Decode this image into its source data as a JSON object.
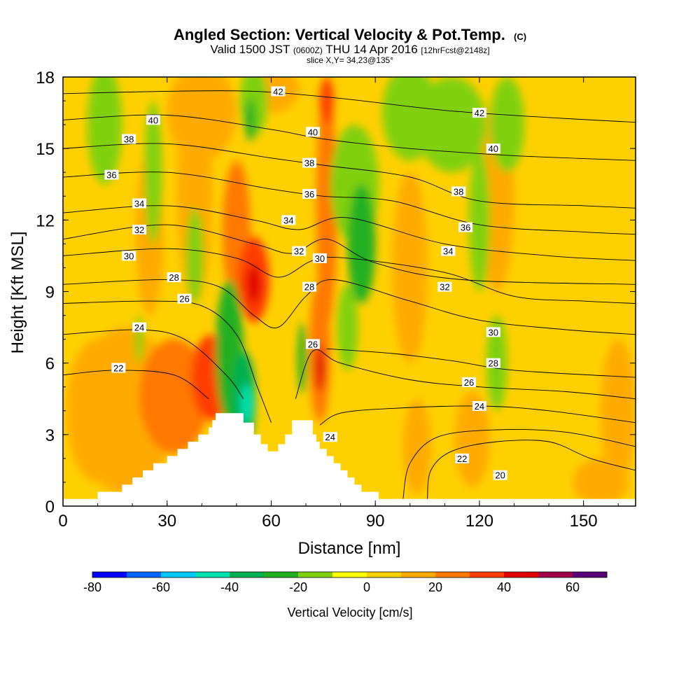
{
  "header": {
    "title_main": "Angled Section: Vertical Velocity & Pot.Temp.",
    "title_unit": "(C)",
    "valid_prefix": "Valid 1500 JST",
    "valid_utc": "(0600Z)",
    "valid_date": "THU 14 Apr 2016",
    "forecast_tag": "[12hrFcst@2148z]",
    "slice_info": "slice X,Y= 34,23@135°"
  },
  "chart_data": {
    "type": "heatmap",
    "title": "Angled Section: Vertical Velocity & Pot.Temp. (C)",
    "xlabel": "Distance [nm]",
    "ylabel": "Height [Kft MSL]",
    "xlim": [
      0,
      165
    ],
    "ylim": [
      0,
      18
    ],
    "x_ticks": [
      0,
      30,
      60,
      90,
      120,
      150
    ],
    "y_ticks": [
      0,
      3,
      6,
      9,
      12,
      15,
      18
    ],
    "grid": false,
    "colorbar": {
      "label": "Vertical Velocity [cm/s]",
      "min": -80,
      "max": 70,
      "step": 10,
      "tick_values": [
        -80,
        -60,
        -40,
        -20,
        0,
        20,
        40,
        60
      ],
      "colors": [
        "#0000ff",
        "#0066ff",
        "#00c8ff",
        "#00e0b0",
        "#00b050",
        "#20b020",
        "#80d010",
        "#ffff00",
        "#ffd000",
        "#ffaa00",
        "#ff7800",
        "#ff3c00",
        "#e00000",
        "#a0004a",
        "#5a0078"
      ]
    },
    "terrain_kft": [
      [
        0,
        0.3
      ],
      [
        10,
        0.3
      ],
      [
        10,
        0.6
      ],
      [
        17,
        0.6
      ],
      [
        17,
        0.9
      ],
      [
        20,
        0.9
      ],
      [
        20,
        1.2
      ],
      [
        23,
        1.2
      ],
      [
        23,
        1.5
      ],
      [
        26,
        1.5
      ],
      [
        26,
        1.8
      ],
      [
        30,
        1.8
      ],
      [
        30,
        2.1
      ],
      [
        33,
        2.1
      ],
      [
        33,
        2.4
      ],
      [
        36,
        2.4
      ],
      [
        36,
        2.7
      ],
      [
        39,
        2.7
      ],
      [
        39,
        3.0
      ],
      [
        42,
        3.0
      ],
      [
        42,
        3.3
      ],
      [
        43,
        3.3
      ],
      [
        43,
        3.6
      ],
      [
        44,
        3.6
      ],
      [
        44,
        3.9
      ],
      [
        52,
        3.9
      ],
      [
        52,
        3.5
      ],
      [
        55,
        3.5
      ],
      [
        55,
        3.0
      ],
      [
        57,
        3.0
      ],
      [
        57,
        2.6
      ],
      [
        59,
        2.6
      ],
      [
        59,
        2.3
      ],
      [
        62,
        2.3
      ],
      [
        62,
        2.6
      ],
      [
        64,
        2.6
      ],
      [
        64,
        3.0
      ],
      [
        66,
        3.0
      ],
      [
        66,
        3.6
      ],
      [
        72,
        3.6
      ],
      [
        72,
        3.0
      ],
      [
        73,
        3.0
      ],
      [
        73,
        2.7
      ],
      [
        74,
        2.7
      ],
      [
        74,
        2.4
      ],
      [
        76,
        2.4
      ],
      [
        76,
        2.1
      ],
      [
        78,
        2.1
      ],
      [
        78,
        1.8
      ],
      [
        80,
        1.8
      ],
      [
        80,
        1.5
      ],
      [
        82,
        1.5
      ],
      [
        82,
        1.2
      ],
      [
        84,
        1.2
      ],
      [
        84,
        0.9
      ],
      [
        86,
        0.9
      ],
      [
        86,
        0.6
      ],
      [
        91,
        0.6
      ],
      [
        91,
        0.3
      ],
      [
        165,
        0.3
      ]
    ],
    "w_features": [
      {
        "x": 18,
        "y": 4.0,
        "rx": 14,
        "ry": 3.5,
        "w": 15
      },
      {
        "x": 32,
        "y": 4.6,
        "rx": 10,
        "ry": 2.4,
        "w": 25
      },
      {
        "x": 43,
        "y": 5.4,
        "rx": 6,
        "ry": 1.8,
        "w": 30
      },
      {
        "x": 25,
        "y": 11.5,
        "rx": 4,
        "ry": 3.5,
        "w": 15
      },
      {
        "x": 38,
        "y": 13.0,
        "rx": 5,
        "ry": 4.5,
        "w": 15
      },
      {
        "x": 50,
        "y": 11.5,
        "rx": 4,
        "ry": 3.0,
        "w": 20
      },
      {
        "x": 55,
        "y": 9.5,
        "rx": 4.5,
        "ry": 1.8,
        "w": 30
      },
      {
        "x": 55,
        "y": 9.3,
        "rx": 2,
        "ry": 0.8,
        "w": 40
      },
      {
        "x": 76,
        "y": 12.5,
        "rx": 3,
        "ry": 5.0,
        "w": 20
      },
      {
        "x": 76,
        "y": 17.0,
        "rx": 2,
        "ry": 1.0,
        "w": 30
      },
      {
        "x": 74,
        "y": 6.5,
        "rx": 3,
        "ry": 3.0,
        "w": 20
      },
      {
        "x": 74,
        "y": 5.8,
        "rx": 1.4,
        "ry": 1.0,
        "w": 40
      },
      {
        "x": 60,
        "y": 17.5,
        "rx": 8,
        "ry": 1.0,
        "w": 15
      },
      {
        "x": 100,
        "y": 10.0,
        "rx": 5,
        "ry": 4.0,
        "w": 12
      },
      {
        "x": 125,
        "y": 13.0,
        "rx": 5,
        "ry": 4.0,
        "w": 12
      },
      {
        "x": 102,
        "y": 2.5,
        "rx": 4,
        "ry": 2.0,
        "w": 12
      },
      {
        "x": 118,
        "y": 2.8,
        "rx": 5,
        "ry": 2.0,
        "w": 12
      },
      {
        "x": 155,
        "y": 1.0,
        "rx": 8,
        "ry": 1.0,
        "w": 12
      },
      {
        "x": 10,
        "y": 4.0,
        "rx": 9,
        "ry": 3.0,
        "w": 12
      },
      {
        "x": 40,
        "y": 16.5,
        "rx": 10,
        "ry": 2.0,
        "w": 12
      },
      {
        "x": 160,
        "y": 4.0,
        "rx": 5,
        "ry": 3.0,
        "w": 12
      },
      {
        "x": 12,
        "y": 16.0,
        "rx": 5,
        "ry": 2.5,
        "w": -12
      },
      {
        "x": 26,
        "y": 14.0,
        "rx": 2.5,
        "ry": 3.0,
        "w": -12
      },
      {
        "x": 38,
        "y": 10.5,
        "rx": 2.5,
        "ry": 2.0,
        "w": -20
      },
      {
        "x": 48,
        "y": 6.5,
        "rx": 4,
        "ry": 3.0,
        "w": -25
      },
      {
        "x": 52,
        "y": 4.5,
        "rx": 3.5,
        "ry": 2.0,
        "w": -35
      },
      {
        "x": 53,
        "y": 4.3,
        "rx": 1.8,
        "ry": 0.8,
        "w": -45
      },
      {
        "x": 55,
        "y": 17.0,
        "rx": 4,
        "ry": 1.5,
        "w": -15
      },
      {
        "x": 54,
        "y": 16.2,
        "rx": 1.5,
        "ry": 0.9,
        "w": -25
      },
      {
        "x": 69,
        "y": 6.2,
        "rx": 1.3,
        "ry": 1.5,
        "w": -25
      },
      {
        "x": 84,
        "y": 13.5,
        "rx": 7,
        "ry": 2.5,
        "w": -15
      },
      {
        "x": 86,
        "y": 11.0,
        "rx": 4,
        "ry": 2.5,
        "w": -25
      },
      {
        "x": 82,
        "y": 7.5,
        "rx": 3,
        "ry": 1.8,
        "w": -20
      },
      {
        "x": 100,
        "y": 16.5,
        "rx": 8,
        "ry": 2.0,
        "w": -12
      },
      {
        "x": 112,
        "y": 16.0,
        "rx": 10,
        "ry": 2.0,
        "w": -15
      },
      {
        "x": 128,
        "y": 16.0,
        "rx": 5,
        "ry": 2.0,
        "w": -12
      },
      {
        "x": 125,
        "y": 6.0,
        "rx": 3,
        "ry": 2.0,
        "w": -15
      },
      {
        "x": 120,
        "y": 12.0,
        "rx": 3,
        "ry": 3.0,
        "w": -12
      },
      {
        "x": 22,
        "y": 7.0,
        "rx": 1.2,
        "ry": 1.0,
        "w": -15
      }
    ],
    "theta_contours": [
      {
        "level": 20,
        "points": [
          [
            105,
            0.3
          ],
          [
            106,
            1.5
          ],
          [
            112,
            2.3
          ],
          [
            125,
            2.7
          ],
          [
            140,
            2.7
          ],
          [
            152,
            2.0
          ],
          [
            165,
            1.5
          ]
        ]
      },
      {
        "level": 22,
        "points": [
          [
            0,
            5.5
          ],
          [
            15,
            5.7
          ],
          [
            32,
            5.5
          ],
          [
            42,
            4.5
          ]
        ]
      },
      {
        "level": 22,
        "points": [
          [
            98,
            0.3
          ],
          [
            100,
            1.8
          ],
          [
            108,
            2.9
          ],
          [
            125,
            3.2
          ],
          [
            145,
            3.1
          ],
          [
            165,
            2.5
          ]
        ]
      },
      {
        "level": 24,
        "points": [
          [
            0,
            7.2
          ],
          [
            22,
            7.4
          ],
          [
            35,
            7.0
          ],
          [
            47,
            5.5
          ],
          [
            52,
            4.5
          ]
        ]
      },
      {
        "level": 24,
        "points": [
          [
            74,
            3.4
          ],
          [
            80,
            3.9
          ],
          [
            95,
            4.1
          ],
          [
            120,
            4.2
          ],
          [
            140,
            4.0
          ],
          [
            165,
            3.5
          ]
        ]
      },
      {
        "level": 26,
        "points": [
          [
            0,
            8.5
          ],
          [
            25,
            8.6
          ],
          [
            40,
            8.4
          ],
          [
            50,
            7.2
          ],
          [
            56,
            5.0
          ],
          [
            60,
            3.5
          ]
        ]
      },
      {
        "level": 26,
        "points": [
          [
            67,
            4.5
          ],
          [
            72,
            6.5
          ],
          [
            80,
            6.0
          ],
          [
            100,
            5.3
          ],
          [
            120,
            5.0
          ],
          [
            145,
            4.8
          ],
          [
            165,
            4.5
          ]
        ]
      },
      {
        "level": 26,
        "points": [
          [
            76,
            6.6
          ],
          [
            95,
            6.4
          ],
          [
            112,
            6.1
          ],
          [
            130,
            5.7
          ],
          [
            165,
            5.4
          ]
        ]
      },
      {
        "level": 28,
        "points": [
          [
            0,
            9.3
          ],
          [
            30,
            9.5
          ],
          [
            45,
            9.2
          ],
          [
            55,
            8.0
          ],
          [
            62,
            7.5
          ],
          [
            70,
            8.8
          ],
          [
            78,
            9.5
          ],
          [
            100,
            8.6
          ],
          [
            120,
            7.8
          ],
          [
            145,
            7.4
          ],
          [
            165,
            7.2
          ]
        ]
      },
      {
        "level": 30,
        "points": [
          [
            0,
            10.5
          ],
          [
            30,
            10.8
          ],
          [
            50,
            10.4
          ],
          [
            62,
            9.6
          ],
          [
            72,
            10.3
          ],
          [
            82,
            10.4
          ],
          [
            110,
            9.8
          ],
          [
            130,
            8.8
          ],
          [
            150,
            8.6
          ],
          [
            165,
            8.5
          ]
        ]
      },
      {
        "level": 32,
        "points": [
          [
            0,
            11.2
          ],
          [
            30,
            11.8
          ],
          [
            55,
            11.0
          ],
          [
            66,
            10.6
          ],
          [
            76,
            11.2
          ],
          [
            90,
            10.2
          ],
          [
            115,
            9.5
          ],
          [
            165,
            9.3
          ]
        ]
      },
      {
        "level": 34,
        "points": [
          [
            0,
            12.3
          ],
          [
            30,
            12.6
          ],
          [
            55,
            12.0
          ],
          [
            68,
            11.6
          ],
          [
            82,
            12.1
          ],
          [
            110,
            11.0
          ],
          [
            140,
            10.5
          ],
          [
            165,
            10.3
          ]
        ]
      },
      {
        "level": 36,
        "points": [
          [
            0,
            13.8
          ],
          [
            30,
            14.0
          ],
          [
            60,
            13.3
          ],
          [
            75,
            13.0
          ],
          [
            95,
            12.8
          ],
          [
            120,
            11.8
          ],
          [
            150,
            11.5
          ],
          [
            165,
            11.4
          ]
        ]
      },
      {
        "level": 38,
        "points": [
          [
            0,
            15.0
          ],
          [
            30,
            15.2
          ],
          [
            60,
            14.6
          ],
          [
            75,
            14.3
          ],
          [
            100,
            13.8
          ],
          [
            120,
            12.8
          ],
          [
            150,
            12.6
          ],
          [
            165,
            12.5
          ]
        ]
      },
      {
        "level": 40,
        "points": [
          [
            0,
            16.2
          ],
          [
            30,
            16.4
          ],
          [
            60,
            15.8
          ],
          [
            75,
            15.4
          ],
          [
            100,
            15.0
          ],
          [
            130,
            14.7
          ],
          [
            165,
            14.5
          ]
        ]
      },
      {
        "level": 42,
        "points": [
          [
            0,
            17.3
          ],
          [
            30,
            17.4
          ],
          [
            55,
            17.4
          ],
          [
            80,
            17.1
          ],
          [
            110,
            16.6
          ],
          [
            140,
            16.3
          ],
          [
            165,
            16.1
          ]
        ]
      }
    ],
    "contour_labels": [
      {
        "text": "40",
        "x": 26,
        "y": 16.2
      },
      {
        "text": "38",
        "x": 19,
        "y": 15.4
      },
      {
        "text": "36",
        "x": 14,
        "y": 13.9
      },
      {
        "text": "34",
        "x": 22,
        "y": 12.7
      },
      {
        "text": "32",
        "x": 22,
        "y": 11.6
      },
      {
        "text": "30",
        "x": 19,
        "y": 10.5
      },
      {
        "text": "28",
        "x": 32,
        "y": 9.6
      },
      {
        "text": "26",
        "x": 35,
        "y": 8.7
      },
      {
        "text": "24",
        "x": 22,
        "y": 7.5
      },
      {
        "text": "22",
        "x": 16,
        "y": 5.8
      },
      {
        "text": "42",
        "x": 62,
        "y": 17.4
      },
      {
        "text": "40",
        "x": 72,
        "y": 15.7
      },
      {
        "text": "38",
        "x": 71,
        "y": 14.4
      },
      {
        "text": "36",
        "x": 71,
        "y": 13.1
      },
      {
        "text": "34",
        "x": 65,
        "y": 12.0
      },
      {
        "text": "32",
        "x": 68,
        "y": 10.7
      },
      {
        "text": "30",
        "x": 74,
        "y": 10.4
      },
      {
        "text": "28",
        "x": 71,
        "y": 9.2
      },
      {
        "text": "26",
        "x": 72,
        "y": 6.8
      },
      {
        "text": "24",
        "x": 77,
        "y": 2.9
      },
      {
        "text": "42",
        "x": 120,
        "y": 16.5
      },
      {
        "text": "40",
        "x": 124,
        "y": 15.0
      },
      {
        "text": "38",
        "x": 114,
        "y": 13.2
      },
      {
        "text": "36",
        "x": 116,
        "y": 11.7
      },
      {
        "text": "34",
        "x": 111,
        "y": 10.7
      },
      {
        "text": "32",
        "x": 110,
        "y": 9.2
      },
      {
        "text": "30",
        "x": 124,
        "y": 7.3
      },
      {
        "text": "28",
        "x": 124,
        "y": 6.0
      },
      {
        "text": "26",
        "x": 117,
        "y": 5.2
      },
      {
        "text": "24",
        "x": 120,
        "y": 4.2
      },
      {
        "text": "22",
        "x": 115,
        "y": 2.0
      },
      {
        "text": "20",
        "x": 126,
        "y": 1.3
      }
    ]
  }
}
